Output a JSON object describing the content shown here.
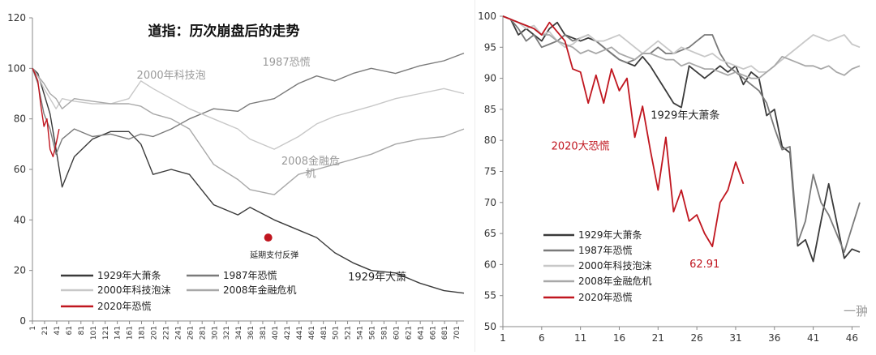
{
  "chart_data": [
    {
      "type": "line",
      "title": "道指：历次崩盘后的走势",
      "xlabel": "",
      "ylabel": "",
      "ylim": [
        0,
        120
      ],
      "xlim": [
        1,
        713
      ],
      "grid": false,
      "legend_position": "bottom-left",
      "yticks": [
        0,
        20,
        40,
        60,
        80,
        100,
        120
      ],
      "xticks": [
        "1",
        "21",
        "41",
        "61",
        "81",
        "101",
        "121",
        "141",
        "161",
        "181",
        "201",
        "221",
        "241",
        "261",
        "281",
        "301",
        "321",
        "341",
        "361",
        "381",
        "401",
        "421",
        "441",
        "461",
        "481",
        "501",
        "521",
        "541",
        "561",
        "581",
        "601",
        "621",
        "641",
        "661",
        "681",
        "701"
      ],
      "series": [
        {
          "name": "1929年大萧条",
          "color": "#3a3a3a",
          "x": [
            1,
            10,
            20,
            30,
            40,
            50,
            70,
            100,
            130,
            160,
            180,
            200,
            230,
            260,
            300,
            340,
            360,
            400,
            440,
            470,
            500,
            530,
            560,
            600,
            640,
            680,
            713
          ],
          "y": [
            100,
            98,
            90,
            82,
            68,
            53,
            65,
            72,
            75,
            75,
            70,
            58,
            60,
            58,
            46,
            42,
            45,
            40,
            36,
            33,
            27,
            23,
            20,
            19,
            15,
            12,
            11
          ]
        },
        {
          "name": "1987年恐慌",
          "color": "#7a7a7a",
          "x": [
            1,
            10,
            20,
            30,
            40,
            50,
            70,
            100,
            130,
            160,
            180,
            200,
            230,
            260,
            300,
            340,
            360,
            400,
            440,
            470,
            500,
            530,
            560,
            600,
            640,
            680,
            713
          ],
          "y": [
            100,
            94,
            82,
            76,
            66,
            72,
            76,
            73,
            74,
            72,
            74,
            73,
            76,
            80,
            84,
            83,
            86,
            88,
            94,
            97,
            95,
            98,
            100,
            98,
            101,
            103,
            106
          ]
        },
        {
          "name": "2000年科技泡沫",
          "color": "#c8c8c8",
          "x": [
            1,
            10,
            20,
            30,
            40,
            50,
            70,
            100,
            130,
            160,
            180,
            200,
            230,
            260,
            300,
            340,
            360,
            400,
            440,
            470,
            500,
            530,
            560,
            600,
            640,
            680,
            713
          ],
          "y": [
            100,
            97,
            92,
            88,
            84,
            88,
            87,
            86,
            86,
            88,
            95,
            92,
            88,
            84,
            80,
            76,
            72,
            68,
            73,
            78,
            81,
            83,
            85,
            88,
            90,
            92,
            90
          ]
        },
        {
          "name": "2008年金融危机",
          "color": "#a8a8a8",
          "x": [
            1,
            10,
            20,
            30,
            40,
            50,
            70,
            100,
            130,
            160,
            180,
            200,
            230,
            260,
            300,
            340,
            360,
            400,
            440,
            470,
            500,
            530,
            560,
            600,
            640,
            680,
            713
          ],
          "y": [
            100,
            97,
            94,
            90,
            88,
            84,
            88,
            87,
            86,
            86,
            85,
            82,
            80,
            76,
            62,
            56,
            52,
            50,
            58,
            60,
            62,
            64,
            66,
            70,
            72,
            73,
            76
          ]
        },
        {
          "name": "2020年恐慌",
          "color": "#c0161f",
          "x": [
            1,
            5,
            10,
            15,
            20,
            25,
            30,
            35,
            40,
            45
          ],
          "y": [
            100,
            98,
            95,
            85,
            77,
            80,
            68,
            65,
            70,
            76
          ]
        }
      ],
      "annotations": [
        {
          "text": "1987恐慌",
          "x": 420,
          "y": 101
        },
        {
          "text": "2000年科技泡",
          "x": 230,
          "y": 96
        },
        {
          "text": "2008金融危",
          "x": 460,
          "y": 62
        },
        {
          "text": "机",
          "x": 460,
          "y": 57
        },
        {
          "text": "1929年大萧",
          "x": 570,
          "y": 16
        },
        {
          "text": "延期支付反弹",
          "x": 400,
          "y": 25
        }
      ],
      "marker": {
        "x": 390,
        "y": 33
      }
    },
    {
      "type": "line",
      "title": "",
      "xlabel": "",
      "ylabel": "",
      "ylim": [
        50,
        100
      ],
      "xlim": [
        1,
        47
      ],
      "grid": false,
      "legend_position": "bottom-left",
      "yticks": [
        50,
        55,
        60,
        65,
        70,
        75,
        80,
        85,
        90,
        95,
        100
      ],
      "xticks": [
        "1",
        "6",
        "11",
        "16",
        "21",
        "26",
        "31",
        "36",
        "41",
        "46"
      ],
      "series": [
        {
          "name": "1929年大萧条",
          "color": "#3a3a3a",
          "x": [
            1,
            2,
            3,
            4,
            5,
            6,
            7,
            8,
            9,
            10,
            11,
            12,
            13,
            14,
            15,
            16,
            17,
            18,
            19,
            20,
            21,
            22,
            23,
            24,
            25,
            26,
            27,
            28,
            29,
            30,
            31,
            32,
            33,
            34,
            35,
            36,
            37,
            38,
            39,
            40,
            41,
            42,
            43,
            44,
            45,
            46,
            47
          ],
          "y": [
            100,
            99.5,
            97,
            98,
            97,
            96,
            98,
            99,
            97,
            96.5,
            96,
            96.5,
            96,
            95,
            94,
            93,
            92.5,
            92,
            93.5,
            92,
            90,
            88,
            86,
            85.3,
            92,
            91,
            90,
            91,
            92,
            91,
            92,
            89,
            91,
            90,
            84,
            85,
            79,
            78,
            63,
            64,
            60.5,
            67,
            73,
            67,
            61,
            62.5,
            62
          ]
        },
        {
          "name": "1987年恐慌",
          "color": "#7a7a7a",
          "x": [
            1,
            2,
            3,
            4,
            5,
            6,
            7,
            8,
            9,
            10,
            11,
            12,
            13,
            14,
            15,
            16,
            17,
            18,
            19,
            20,
            21,
            22,
            23,
            24,
            25,
            26,
            27,
            28,
            29,
            30,
            31,
            32,
            33,
            34,
            35,
            36,
            37,
            38,
            39,
            40,
            41,
            42,
            43,
            44,
            45,
            46,
            47
          ],
          "y": [
            100,
            99.5,
            98,
            96,
            97,
            95,
            95.5,
            96,
            97,
            96,
            96.5,
            97,
            96,
            95,
            94,
            93,
            92.5,
            93,
            94,
            94,
            95,
            94,
            94,
            94.5,
            95,
            96,
            97,
            97,
            94,
            92,
            91,
            90,
            89,
            88,
            86,
            82,
            78.5,
            79,
            63.5,
            67,
            74.5,
            70,
            68,
            65,
            62,
            66,
            70
          ]
        },
        {
          "name": "2000年科技泡沫",
          "color": "#c8c8c8",
          "x": [
            1,
            2,
            3,
            4,
            5,
            6,
            7,
            8,
            9,
            10,
            11,
            12,
            13,
            14,
            15,
            16,
            17,
            18,
            19,
            20,
            21,
            22,
            23,
            24,
            25,
            26,
            27,
            28,
            29,
            30,
            31,
            32,
            33,
            34,
            35,
            36,
            37,
            38,
            39,
            40,
            41,
            42,
            43,
            44,
            45,
            46,
            47
          ],
          "y": [
            100,
            99.5,
            99,
            98,
            98.5,
            97,
            97.5,
            96,
            95,
            95.5,
            96.5,
            97,
            96,
            96,
            96.5,
            97,
            96,
            95,
            94,
            95,
            96,
            95,
            94,
            95,
            94.5,
            94,
            93.5,
            94,
            93,
            92.5,
            92,
            91.5,
            92,
            91,
            91,
            92,
            93,
            94,
            95,
            96,
            97,
            96.5,
            96,
            96.5,
            97,
            95.5,
            95
          ]
        },
        {
          "name": "2008年金融危机",
          "color": "#a8a8a8",
          "x": [
            1,
            2,
            3,
            4,
            5,
            6,
            7,
            8,
            9,
            10,
            11,
            12,
            13,
            14,
            15,
            16,
            17,
            18,
            19,
            20,
            21,
            22,
            23,
            24,
            25,
            26,
            27,
            28,
            29,
            30,
            31,
            32,
            33,
            34,
            35,
            36,
            37,
            38,
            39,
            40,
            41,
            42,
            43,
            44,
            45,
            46,
            47
          ],
          "y": [
            100,
            99.5,
            99,
            98.5,
            98,
            97,
            97,
            96,
            95.5,
            95,
            94,
            94.5,
            94,
            94.5,
            95,
            94,
            93.5,
            93,
            94,
            94,
            93.5,
            93,
            93,
            92,
            92.5,
            92,
            91.5,
            91.5,
            91,
            90.5,
            91,
            90.5,
            90,
            90,
            91,
            92,
            93.5,
            93,
            92.5,
            92,
            92,
            91.5,
            92,
            91,
            90.5,
            91.5,
            92
          ]
        },
        {
          "name": "2020年恐慌",
          "color": "#c0161f",
          "x": [
            1,
            2,
            3,
            4,
            5,
            6,
            7,
            8,
            9,
            10,
            11,
            12,
            13,
            14,
            15,
            16,
            17,
            18,
            19,
            20,
            21,
            22,
            23,
            24,
            25,
            26,
            27,
            28,
            29,
            30,
            31,
            32
          ],
          "y": [
            100,
            99.5,
            99,
            98.5,
            98,
            97,
            99,
            97.5,
            96,
            91.5,
            91,
            86,
            90.5,
            86,
            91.5,
            88,
            90,
            80.5,
            85.5,
            78.5,
            72,
            80.5,
            68.5,
            72,
            67,
            68,
            65,
            62.91,
            70,
            72,
            76.5,
            73
          ]
        }
      ],
      "annotations": [
        {
          "text": "1929年大萧条",
          "x": 24.5,
          "y": 83.5
        },
        {
          "text": "2020大恐慌",
          "x": 11,
          "y": 78.5
        },
        {
          "text": "62.91",
          "x": 27,
          "y": 59.5
        }
      ]
    }
  ],
  "watermark": "一翀"
}
